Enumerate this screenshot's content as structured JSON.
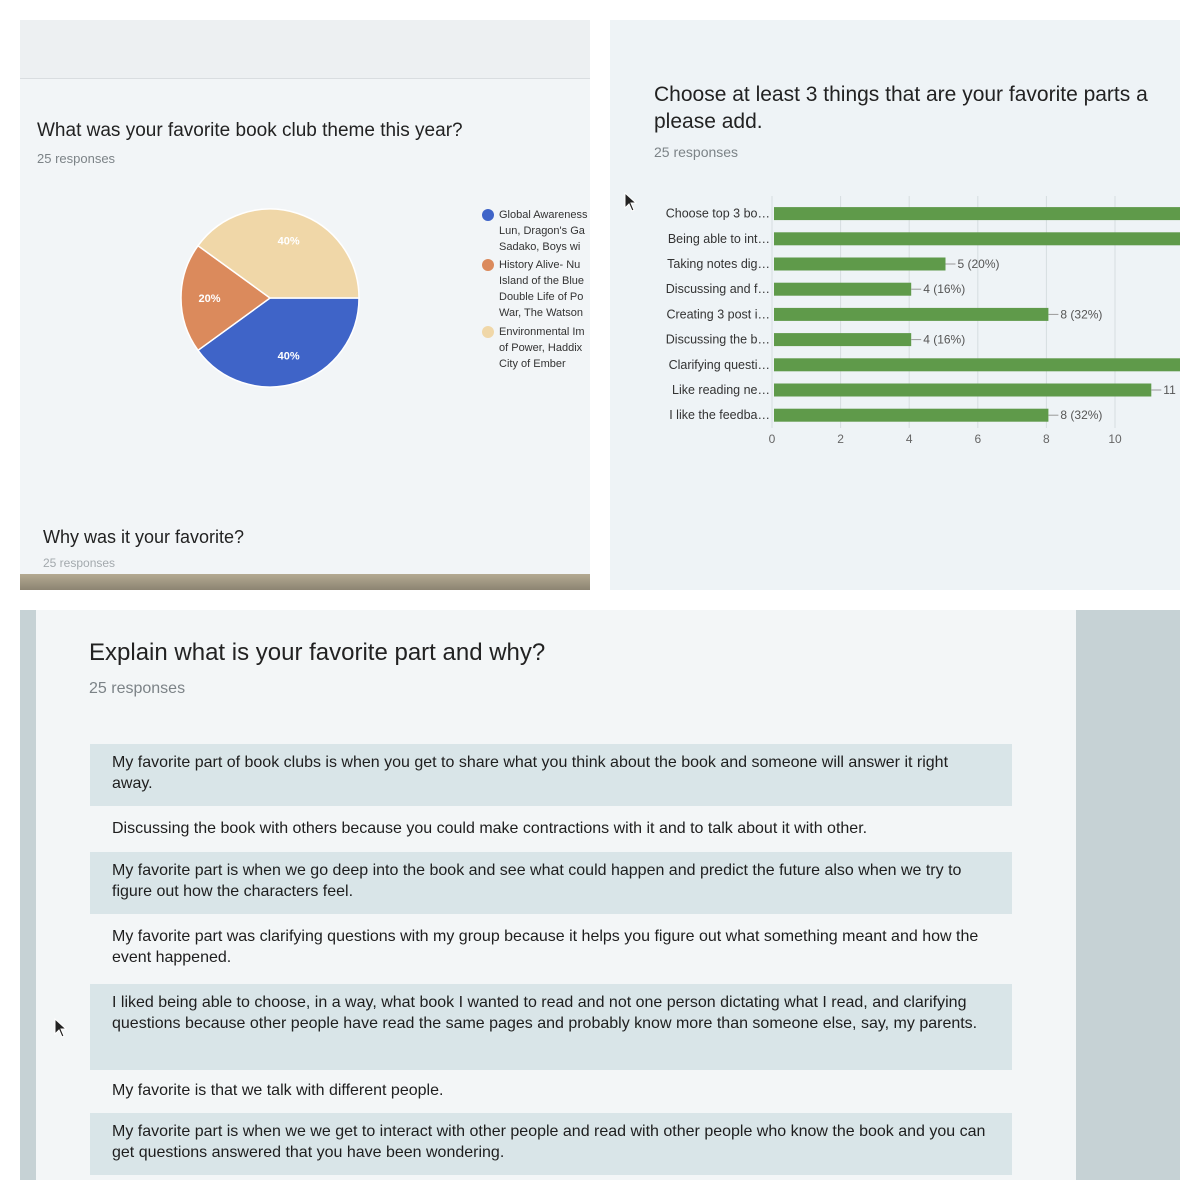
{
  "panel1": {
    "question": "What was your favorite book club theme this year?",
    "responses": "25 responses",
    "followup_question": "Why was it your favorite?",
    "followup_responses": "25 responses",
    "chart_data": {
      "type": "pie",
      "slices": [
        {
          "label": "Global Awareness\nLun, Dragon's Ga\nSadako, Boys wi",
          "value": 40,
          "display": "40%",
          "color": "#3f64c8"
        },
        {
          "label": "History Alive- Nu\nIsland of the Blue\nDouble Life of Po\nWar, The Watson",
          "value": 20,
          "display": "20%",
          "color": "#db8a5c"
        },
        {
          "label": "Environmental Im\nof Power, Haddix\nCity of Ember",
          "value": 40,
          "display": "40%",
          "color": "#f0d7a8"
        }
      ],
      "legend_position": "right"
    }
  },
  "panel2": {
    "question_line1": "Choose at least 3 things that are your favorite parts a",
    "question_line2": "please add.",
    "responses": "25 responses",
    "chart_data": {
      "type": "bar",
      "orientation": "horizontal",
      "categories": [
        "Choose top 3 bo…",
        "Being able to int…",
        "Taking notes dig…",
        "Discussing and f…",
        "Creating 3 post i…",
        "Discussing the b…",
        "Clarifying questi…",
        "Like reading ne…",
        "I like the feedba…"
      ],
      "values": [
        12,
        12,
        5,
        4,
        8,
        4,
        12,
        11,
        8
      ],
      "labels": [
        "",
        "",
        "5 (20%)",
        "4 (16%)",
        "8 (32%)",
        "4 (16%)",
        "",
        "11",
        "8 (32%)"
      ],
      "x_ticks": [
        "0",
        "2",
        "4",
        "6",
        "8",
        "10"
      ],
      "xlim": [
        0,
        12
      ],
      "bar_color": "#5f9a4a",
      "grid": true
    }
  },
  "panel3": {
    "question": "Explain what is your favorite part and why?",
    "responses": "25 responses",
    "answers": [
      "My favorite part of book clubs is when you get to share what you think about the book and someone will answer it right away.",
      "Discussing the book with others because you could make contractions with it and to talk about it with other.",
      "My favorite part is when we go deep into the book and see what could happen and predict the future also when we try to figure out how the characters feel.",
      "My favorite part was clarifying questions with my group because it helps you figure out what something meant and how the event happened.",
      "I liked being able to choose, in a way, what book I wanted to read and not one person dictating what I read, and clarifying questions because other people have read the same pages and probably know more than someone else, say, my parents.",
      "My favorite is that we talk with different people.",
      "My favorite part is when we we get to interact with other people and read with other people who know the book and you can get questions answered that you have been wondering."
    ]
  }
}
